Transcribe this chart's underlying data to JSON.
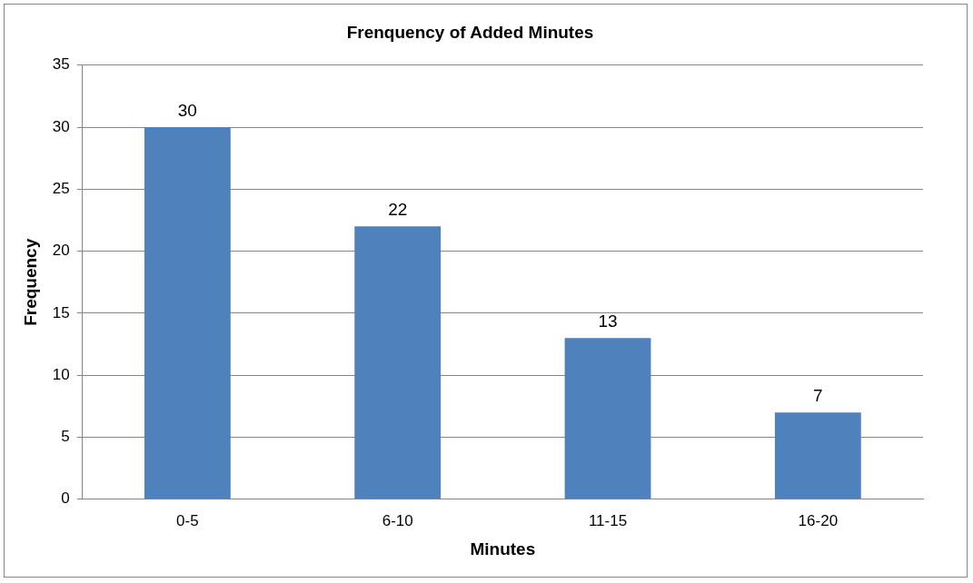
{
  "chart_data": {
    "type": "bar",
    "title": "Frenquency of Added Minutes",
    "xlabel": "Minutes",
    "ylabel": "Frequency",
    "categories": [
      "0-5",
      "6-10",
      "11-15",
      "16-20"
    ],
    "values": [
      30,
      22,
      13,
      7
    ],
    "color": "#4f81bd",
    "ylim": [
      0,
      35
    ],
    "yticks": [
      0,
      5,
      10,
      15,
      20,
      25,
      30,
      35
    ],
    "grid": "y",
    "data_labels": true
  }
}
